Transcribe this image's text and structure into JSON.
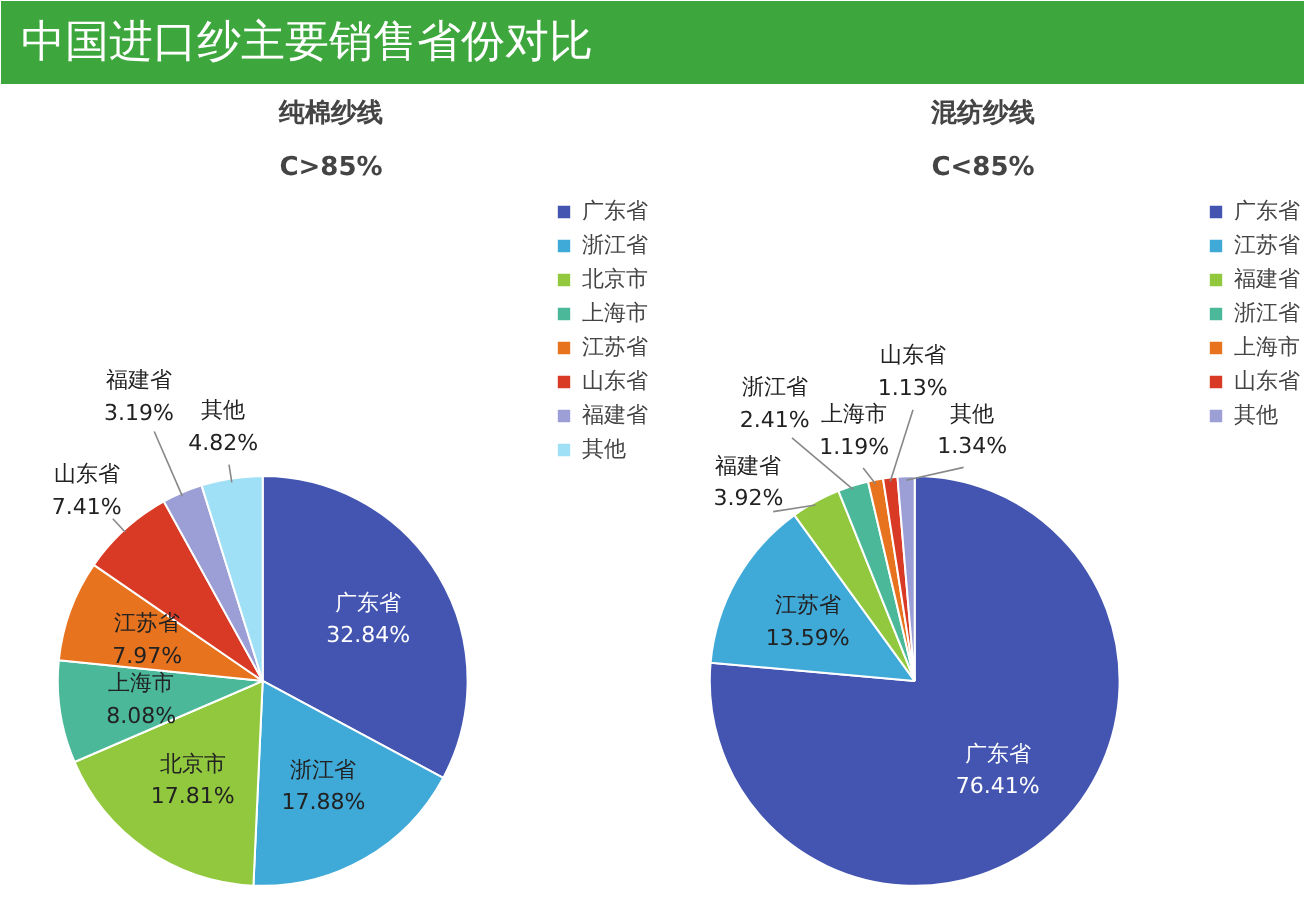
{
  "chart_data": [
    {
      "type": "pie",
      "title": "纯棉纱线",
      "subtitle": "C>85%",
      "annotations": [
        "中国进口纱主要销售省份对比"
      ],
      "legend": "top right",
      "value_labels": [
        "32.84%",
        "17.88%",
        "17.81%",
        "8.08%",
        "7.97%",
        "7.41%",
        "3.19%",
        "4.82%"
      ],
      "categories": [
        "广东省",
        "浙江省",
        "北京市",
        "上海市",
        "江苏省",
        "山东省",
        "福建省",
        "其他"
      ],
      "values": [
        32.84,
        17.88,
        17.81,
        8.08,
        7.97,
        7.41,
        3.19,
        4.82
      ],
      "colors": [
        "#4355b0",
        "#3fa9d8",
        "#92c83e",
        "#4bb89a",
        "#e8731f",
        "#d93a26",
        "#9b9fd6",
        "#9fe0f6"
      ]
    },
    {
      "type": "pie",
      "title": "混纺纱线",
      "subtitle": "C<85%",
      "legend": "top right",
      "value_labels": [
        "76.41%",
        "13.59%",
        "3.92%",
        "2.41%",
        "1.19%",
        "1.13%",
        "1.34%"
      ],
      "categories": [
        "广东省",
        "江苏省",
        "福建省",
        "浙江省",
        "上海市",
        "山东省",
        "其他"
      ],
      "values": [
        76.41,
        13.59,
        3.92,
        2.41,
        1.19,
        1.13,
        1.34
      ],
      "colors": [
        "#4355b0",
        "#3fa9d8",
        "#92c83e",
        "#4bb89a",
        "#e8731f",
        "#d93a26",
        "#9b9fd6"
      ]
    }
  ]
}
